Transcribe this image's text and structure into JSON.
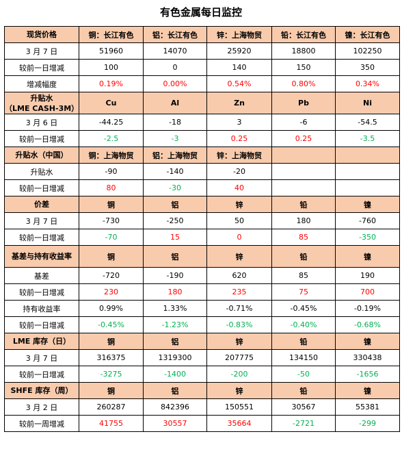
{
  "title": "有色金属每日监控",
  "colors": {
    "header_bg": "#F8CBAD",
    "up": "#FF0000",
    "down": "#00B050"
  },
  "sections": [
    {
      "header": [
        "现货价格",
        "铜：长江有色",
        "铝：长江有色",
        "锌：上海物贸",
        "铅：长江有色",
        "镍：长江有色"
      ],
      "rows": [
        {
          "cells": [
            "3 月 7 日",
            "51960",
            "14070",
            "25920",
            "18800",
            "102250"
          ],
          "colors": [
            "plain",
            "plain",
            "plain",
            "plain",
            "plain",
            "plain"
          ]
        },
        {
          "cells": [
            "较前一日增减",
            "100",
            "0",
            "140",
            "150",
            "350"
          ],
          "colors": [
            "plain",
            "plain",
            "plain",
            "plain",
            "plain",
            "plain"
          ]
        },
        {
          "cells": [
            "增减幅度",
            "0.19%",
            "0.00%",
            "0.54%",
            "0.80%",
            "0.34%"
          ],
          "colors": [
            "plain",
            "red",
            "red",
            "red",
            "red",
            "red"
          ]
        }
      ]
    },
    {
      "header": [
        "升贴水\n（LME CASH-3M）",
        "Cu",
        "Al",
        "Zn",
        "Pb",
        "Ni"
      ],
      "tall": true,
      "rows": [
        {
          "cells": [
            "3 月 6 日",
            "-44.25",
            "-18",
            "3",
            "-6",
            "-54.5"
          ],
          "colors": [
            "plain",
            "plain",
            "plain",
            "plain",
            "plain",
            "plain"
          ]
        },
        {
          "cells": [
            "较前一日增减",
            "-2.5",
            "-3",
            "0.25",
            "0.25",
            "-3.5"
          ],
          "colors": [
            "plain",
            "green",
            "green",
            "red",
            "red",
            "green"
          ]
        }
      ]
    },
    {
      "header": [
        "升贴水（中国）",
        "铜：上海物贸",
        "铝：上海物贸",
        "锌：上海物贸",
        "",
        ""
      ],
      "rows": [
        {
          "cells": [
            "升贴水",
            "-90",
            "-140",
            "-20",
            "",
            ""
          ],
          "colors": [
            "plain",
            "plain",
            "plain",
            "plain",
            "plain",
            "plain"
          ]
        },
        {
          "cells": [
            "较前一日增减",
            "80",
            "-30",
            "40",
            "",
            ""
          ],
          "colors": [
            "plain",
            "red",
            "green",
            "red",
            "plain",
            "plain"
          ]
        }
      ]
    },
    {
      "header": [
        "价差",
        "铜",
        "铝",
        "锌",
        "铅",
        "镍"
      ],
      "rows": [
        {
          "cells": [
            "3 月 7 日",
            "-730",
            "-250",
            "50",
            "180",
            "-760"
          ],
          "colors": [
            "plain",
            "plain",
            "plain",
            "plain",
            "plain",
            "plain"
          ]
        },
        {
          "cells": [
            "较前一日增减",
            "-70",
            "15",
            "0",
            "85",
            "-350"
          ],
          "colors": [
            "plain",
            "green",
            "red",
            "red",
            "red",
            "green"
          ]
        }
      ]
    },
    {
      "header": [
        "基差与持有收益率",
        "铜",
        "铝",
        "锌",
        "铅",
        "镍"
      ],
      "tall": true,
      "rows": [
        {
          "cells": [
            "基差",
            "-720",
            "-190",
            "620",
            "85",
            "190"
          ],
          "colors": [
            "plain",
            "plain",
            "plain",
            "plain",
            "plain",
            "plain"
          ]
        },
        {
          "cells": [
            "较前一日增减",
            "230",
            "180",
            "235",
            "75",
            "700"
          ],
          "colors": [
            "plain",
            "red",
            "red",
            "red",
            "red",
            "red"
          ]
        },
        {
          "cells": [
            "持有收益率",
            "0.99%",
            "1.33%",
            "-0.71%",
            "-0.45%",
            "-0.19%"
          ],
          "colors": [
            "plain",
            "plain",
            "plain",
            "plain",
            "plain",
            "plain"
          ]
        },
        {
          "cells": [
            "较前一日增减",
            "-0.45%",
            "-1.23%",
            "-0.83%",
            "-0.40%",
            "-0.68%"
          ],
          "colors": [
            "plain",
            "green",
            "green",
            "green",
            "green",
            "green"
          ]
        }
      ]
    },
    {
      "header": [
        "LME 库存（日）",
        "铜",
        "铝",
        "锌",
        "铅",
        "镍"
      ],
      "rows": [
        {
          "cells": [
            "3 月 7 日",
            "316375",
            "1319300",
            "207775",
            "134150",
            "330438"
          ],
          "colors": [
            "plain",
            "plain",
            "plain",
            "plain",
            "plain",
            "plain"
          ]
        },
        {
          "cells": [
            "较前一日增减",
            "-3275",
            "-1400",
            "-200",
            "-50",
            "-1656"
          ],
          "colors": [
            "plain",
            "green",
            "green",
            "green",
            "green",
            "green"
          ]
        }
      ]
    },
    {
      "header": [
        "SHFE 库存（周）",
        "铜",
        "铝",
        "锌",
        "铅",
        "镍"
      ],
      "rows": [
        {
          "cells": [
            "3 月 2 日",
            "260287",
            "842396",
            "150551",
            "30567",
            "55381"
          ],
          "colors": [
            "plain",
            "plain",
            "plain",
            "plain",
            "plain",
            "plain"
          ]
        },
        {
          "cells": [
            "较前一周增减",
            "41755",
            "30557",
            "35664",
            "-2721",
            "-299"
          ],
          "colors": [
            "plain",
            "red",
            "red",
            "red",
            "green",
            "green"
          ]
        }
      ]
    }
  ]
}
